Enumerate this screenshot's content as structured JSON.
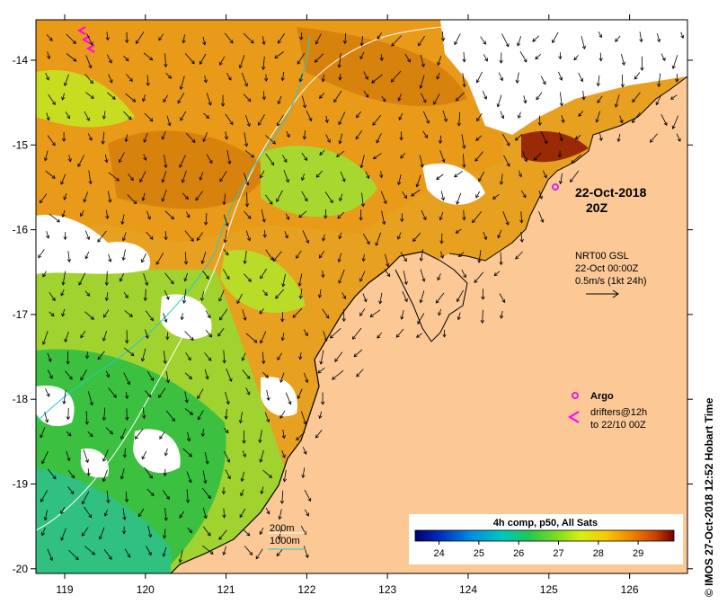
{
  "map": {
    "date_label": "22-Oct-2018",
    "time_label": "20Z",
    "current_info": {
      "source": "NRT00 GSL",
      "date": "22-Oct 00:00Z",
      "scale_label": "0.5m/s (1kt 24h)",
      "scale_speed_ms": 0.5
    },
    "legend": {
      "argo_label": "Argo",
      "drifters_label": "drifters@12h",
      "drifters_to": "to 22/10 00Z",
      "isobath_200": "200m",
      "isobath_1000": "1000m"
    },
    "colorbar": {
      "title": "4h comp, p50, All Sats",
      "ticks": [
        "24",
        "25",
        "26",
        "27",
        "28",
        "29"
      ],
      "range": [
        23.4,
        29.9
      ]
    },
    "axes": {
      "lon_ticks": [
        "119",
        "120",
        "121",
        "122",
        "123",
        "124",
        "125",
        "126"
      ],
      "lat_ticks": [
        "-14",
        "-15",
        "-16",
        "-17",
        "-18",
        "-19",
        "-20"
      ]
    },
    "credit": "© IMOS 27-Oct-2018 12:52 Hobart Time",
    "colors": {
      "land": "#fbc896",
      "cloud": "#ffffff",
      "isobath_200": "#ffffff",
      "isobath_1000": "#22cccc",
      "drifter": "#ff00ff",
      "argo": "#e020e0"
    }
  }
}
